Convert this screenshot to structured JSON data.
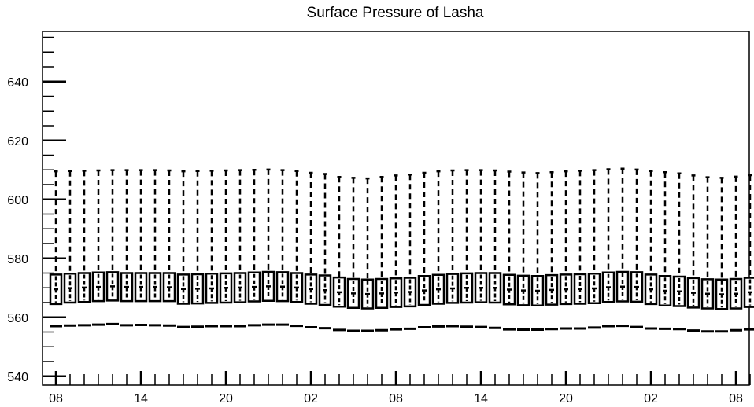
{
  "chart_data": {
    "type": "box",
    "title": "Surface Pressure of Lasha",
    "xlabel": "",
    "ylabel": "",
    "ylim": [
      537,
      657
    ],
    "y_major_ticks": [
      540,
      560,
      580,
      600,
      620,
      640
    ],
    "x_tick_labels": [
      "08",
      "14",
      "20",
      "02",
      "08",
      "14",
      "20",
      "02",
      "08"
    ],
    "boxes": {
      "max": [
        609.5,
        609.6,
        609.7,
        609.8,
        609.9,
        609.9,
        609.9,
        609.9,
        609.8,
        609.5,
        609.6,
        609.7,
        609.8,
        609.9,
        610.0,
        610.1,
        609.9,
        609.6,
        609.0,
        608.6,
        607.6,
        607.3,
        607.1,
        607.6,
        608.1,
        608.4,
        609.0,
        609.5,
        609.8,
        609.9,
        609.9,
        609.8,
        609.4,
        609.1,
        608.9,
        609.2,
        609.5,
        609.7,
        609.9,
        610.2,
        610.4,
        610.1,
        609.6,
        609.2,
        608.8,
        608.1,
        607.5,
        607.3,
        607.7,
        608.2
      ],
      "q3": [
        574.5,
        574.8,
        575.0,
        575.2,
        575.3,
        575.0,
        575.0,
        575.0,
        575.0,
        574.5,
        574.6,
        574.8,
        574.9,
        575.0,
        575.2,
        575.4,
        575.3,
        575.0,
        574.5,
        574.2,
        573.5,
        573.0,
        572.8,
        573.0,
        573.2,
        573.4,
        574.0,
        574.4,
        574.7,
        574.9,
        575.0,
        575.0,
        574.4,
        574.1,
        574.0,
        574.3,
        574.5,
        574.6,
        574.8,
        575.2,
        575.4,
        575.3,
        574.5,
        574.0,
        573.8,
        573.3,
        572.9,
        572.8,
        573.0,
        573.4
      ],
      "q1": [
        564.5,
        565.0,
        565.2,
        565.5,
        565.7,
        565.5,
        565.5,
        565.5,
        565.5,
        564.6,
        564.7,
        564.9,
        565.0,
        565.1,
        565.4,
        565.6,
        565.5,
        565.2,
        564.6,
        564.2,
        563.6,
        563.2,
        563.0,
        563.2,
        563.5,
        563.7,
        564.2,
        564.6,
        564.9,
        565.0,
        565.1,
        565.0,
        564.4,
        564.1,
        564.0,
        564.3,
        564.5,
        564.6,
        564.8,
        565.2,
        565.4,
        565.3,
        564.5,
        564.0,
        563.8,
        563.3,
        563.0,
        562.8,
        563.0,
        563.5
      ],
      "median": [
        569.5,
        569.9,
        570.1,
        570.3,
        570.5,
        570.3,
        570.3,
        570.3,
        570.2,
        569.6,
        569.7,
        569.8,
        570.0,
        570.1,
        570.3,
        570.5,
        570.4,
        570.1,
        569.6,
        569.2,
        568.5,
        568.1,
        567.9,
        568.1,
        568.4,
        568.6,
        569.1,
        569.5,
        569.8,
        570.0,
        570.0,
        570.0,
        569.4,
        569.1,
        569.0,
        569.3,
        569.5,
        569.6,
        569.8,
        570.2,
        570.4,
        570.3,
        569.5,
        569.0,
        568.8,
        568.3,
        568.0,
        567.8,
        568.0,
        568.5
      ],
      "min": [
        557.0,
        557.2,
        557.3,
        557.5,
        557.7,
        557.3,
        557.4,
        557.3,
        557.2,
        556.7,
        556.8,
        557.0,
        557.0,
        557.0,
        557.3,
        557.5,
        557.5,
        557.1,
        556.6,
        556.3,
        555.7,
        555.4,
        555.4,
        555.6,
        555.9,
        556.1,
        556.6,
        556.9,
        557.0,
        556.8,
        556.7,
        556.4,
        555.9,
        555.8,
        555.8,
        556.0,
        556.2,
        556.2,
        556.5,
        557.0,
        557.1,
        556.7,
        556.2,
        556.1,
        556.0,
        555.5,
        555.2,
        555.2,
        555.6,
        555.9
      ]
    },
    "grid": false,
    "legend": "none"
  }
}
